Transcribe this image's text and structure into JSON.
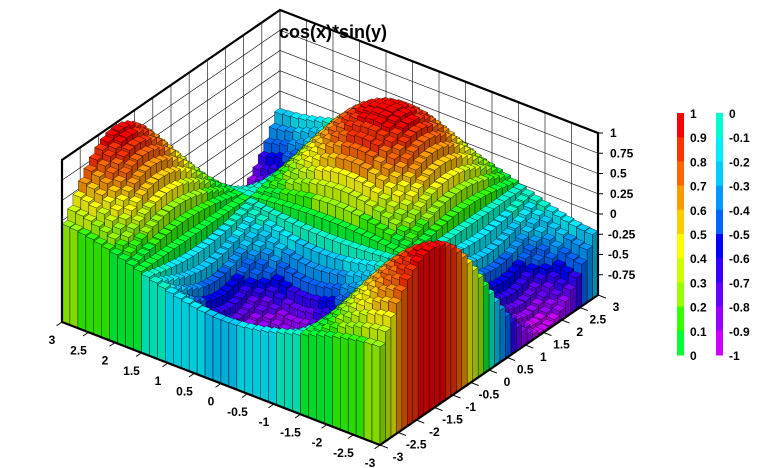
{
  "chart_data": {
    "type": "lego3d",
    "title": "cos(x)*sin(y)",
    "function": "cos(x)*sin(y)",
    "x": {
      "range": [
        -3,
        3
      ],
      "ticks": [
        3,
        2.5,
        2,
        1.5,
        1,
        0.5,
        0,
        -0.5,
        -1,
        -1.5,
        -2,
        -2.5,
        -3
      ],
      "tick_labels": [
        "3",
        "2.5",
        "2",
        "1.5",
        "1",
        "0.5",
        "0",
        "-0.5",
        "-1",
        "-1.5",
        "-2",
        "-2.5",
        "-3"
      ]
    },
    "y": {
      "range": [
        -3,
        3
      ],
      "ticks": [
        -3,
        -2.5,
        -2,
        -1.5,
        -1,
        -0.5,
        0,
        0.5,
        1,
        1.5,
        2,
        2.5,
        3
      ],
      "tick_labels": [
        "-3",
        "-2.5",
        "-2",
        "-1.5",
        "-1",
        "-0.5",
        "0",
        "0.5",
        "1",
        "1.5",
        "2",
        "2.5",
        "3"
      ]
    },
    "z": {
      "range": [
        -1,
        1
      ],
      "ticks": [
        1,
        0.75,
        0.5,
        0.25,
        0,
        -0.25,
        -0.5,
        -0.75
      ],
      "tick_labels": [
        "1",
        "0.75",
        "0.5",
        "0.25",
        "0",
        "-0.25",
        "-0.5",
        "-0.75"
      ]
    },
    "bins": {
      "nx": 40,
      "ny": 40
    },
    "grid": true,
    "colorbar": {
      "placement": "right",
      "positive_labels": [
        "1",
        "0.9",
        "0.8",
        "0.7",
        "0.6",
        "0.5",
        "0.4",
        "0.3",
        "0.2",
        "0.1",
        "0"
      ],
      "negative_labels": [
        "0",
        "-0.1",
        "-0.2",
        "-0.3",
        "-0.4",
        "-0.5",
        "-0.6",
        "-0.7",
        "-0.8",
        "-0.9",
        "-1"
      ],
      "positive_colors": [
        "#ff0000",
        "#ff3300",
        "#ff6600",
        "#ff9900",
        "#ffcc00",
        "#ffff00",
        "#ccff00",
        "#99ff00",
        "#33ff00",
        "#00ff33",
        "#00ff66"
      ],
      "negative_colors": [
        "#00ffcc",
        "#00eeff",
        "#00ccff",
        "#0099ff",
        "#0066ff",
        "#0000ff",
        "#3300ff",
        "#6600ff",
        "#9900ff",
        "#cc00ff",
        "#ff00ff"
      ]
    }
  }
}
